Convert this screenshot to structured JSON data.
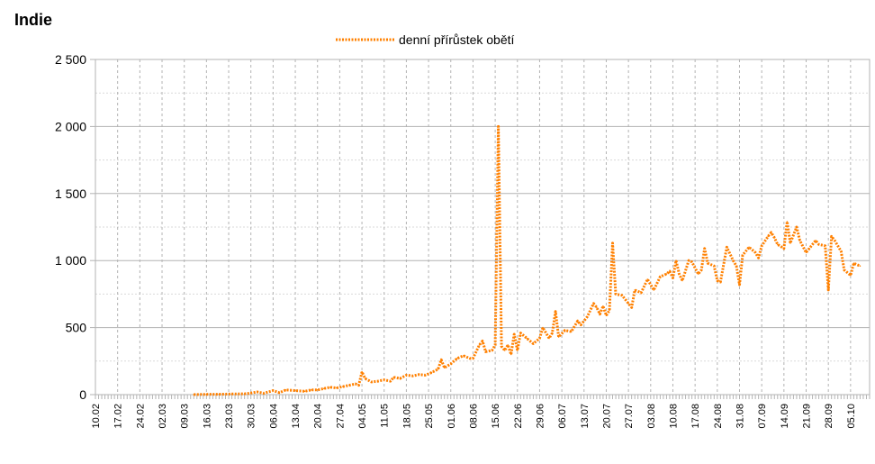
{
  "page_title": "Indie",
  "chart_data": {
    "type": "line",
    "title": "",
    "xlabel": "",
    "ylabel": "",
    "legend": {
      "position": "top-center"
    },
    "grid": true,
    "x_range": [
      "10.02",
      "11.10"
    ],
    "ylim": [
      0,
      2500
    ],
    "y_ticks": [
      "0",
      "500",
      "1 000",
      "1 500",
      "2 000",
      "2 500"
    ],
    "x_ticks": [
      "10.02",
      "17.02",
      "24.02",
      "02.03",
      "09.03",
      "16.03",
      "23.03",
      "30.03",
      "06.04",
      "13.04",
      "20.04",
      "27.04",
      "04.05",
      "11.05",
      "18.05",
      "25.05",
      "01.06",
      "08.06",
      "15.06",
      "22.06",
      "29.06",
      "06.07",
      "13.07",
      "20.07",
      "27.07",
      "03.08",
      "10.08",
      "17.08",
      "24.08",
      "31.08",
      "07.09",
      "14.09",
      "21.09",
      "28.09",
      "05.10"
    ],
    "series": [
      {
        "name": "denní přírůstek obětí",
        "color": "#ff8000",
        "style": "dotted",
        "values": [
          [
            "12.03",
            1
          ],
          [
            "16.03",
            2
          ],
          [
            "20.03",
            3
          ],
          [
            "24.03",
            5
          ],
          [
            "28.03",
            6
          ],
          [
            "30.03",
            12
          ],
          [
            "01.04",
            20
          ],
          [
            "03.04",
            10
          ],
          [
            "06.04",
            30
          ],
          [
            "08.04",
            15
          ],
          [
            "10.04",
            35
          ],
          [
            "13.04",
            30
          ],
          [
            "16.04",
            25
          ],
          [
            "18.04",
            35
          ],
          [
            "20.04",
            35
          ],
          [
            "22.04",
            45
          ],
          [
            "24.04",
            55
          ],
          [
            "26.04",
            50
          ],
          [
            "28.04",
            60
          ],
          [
            "30.04",
            70
          ],
          [
            "02.05",
            80
          ],
          [
            "03.05",
            70
          ],
          [
            "04.05",
            170
          ],
          [
            "05.05",
            120
          ],
          [
            "07.05",
            95
          ],
          [
            "09.05",
            100
          ],
          [
            "11.05",
            110
          ],
          [
            "13.05",
            100
          ],
          [
            "14.05",
            130
          ],
          [
            "16.05",
            120
          ],
          [
            "18.05",
            145
          ],
          [
            "20.05",
            140
          ],
          [
            "22.05",
            150
          ],
          [
            "24.05",
            145
          ],
          [
            "26.05",
            165
          ],
          [
            "28.05",
            190
          ],
          [
            "29.05",
            260
          ],
          [
            "30.05",
            200
          ],
          [
            "01.06",
            230
          ],
          [
            "03.06",
            270
          ],
          [
            "05.06",
            290
          ],
          [
            "07.06",
            270
          ],
          [
            "08.06",
            270
          ],
          [
            "10.06",
            370
          ],
          [
            "11.06",
            400
          ],
          [
            "12.06",
            320
          ],
          [
            "14.06",
            330
          ],
          [
            "15.06",
            370
          ],
          [
            "16.06",
            2000
          ],
          [
            "17.06",
            360
          ],
          [
            "18.06",
            330
          ],
          [
            "19.06",
            370
          ],
          [
            "20.06",
            300
          ],
          [
            "21.06",
            450
          ],
          [
            "22.06",
            330
          ],
          [
            "23.06",
            460
          ],
          [
            "25.06",
            420
          ],
          [
            "27.06",
            380
          ],
          [
            "29.06",
            420
          ],
          [
            "30.06",
            500
          ],
          [
            "02.07",
            420
          ],
          [
            "03.07",
            460
          ],
          [
            "04.07",
            620
          ],
          [
            "05.07",
            430
          ],
          [
            "07.07",
            480
          ],
          [
            "09.07",
            470
          ],
          [
            "11.07",
            550
          ],
          [
            "12.07",
            520
          ],
          [
            "14.07",
            580
          ],
          [
            "16.07",
            680
          ],
          [
            "17.07",
            650
          ],
          [
            "18.07",
            600
          ],
          [
            "19.07",
            660
          ],
          [
            "20.07",
            590
          ],
          [
            "21.07",
            630
          ],
          [
            "22.07",
            1130
          ],
          [
            "23.07",
            750
          ],
          [
            "25.07",
            740
          ],
          [
            "27.07",
            680
          ],
          [
            "28.07",
            650
          ],
          [
            "29.07",
            780
          ],
          [
            "31.07",
            760
          ],
          [
            "02.08",
            860
          ],
          [
            "04.08",
            780
          ],
          [
            "06.08",
            880
          ],
          [
            "08.08",
            900
          ],
          [
            "09.08",
            920
          ],
          [
            "10.08",
            870
          ],
          [
            "11.08",
            1000
          ],
          [
            "12.08",
            900
          ],
          [
            "13.08",
            850
          ],
          [
            "15.08",
            1000
          ],
          [
            "16.08",
            990
          ],
          [
            "18.08",
            900
          ],
          [
            "19.08",
            930
          ],
          [
            "20.08",
            1090
          ],
          [
            "21.08",
            980
          ],
          [
            "23.08",
            960
          ],
          [
            "24.08",
            850
          ],
          [
            "25.08",
            840
          ],
          [
            "27.08",
            1100
          ],
          [
            "29.08",
            1000
          ],
          [
            "30.08",
            960
          ],
          [
            "31.08",
            820
          ],
          [
            "01.09",
            1040
          ],
          [
            "03.09",
            1100
          ],
          [
            "05.09",
            1060
          ],
          [
            "06.09",
            1020
          ],
          [
            "07.09",
            1110
          ],
          [
            "09.09",
            1180
          ],
          [
            "10.09",
            1210
          ],
          [
            "11.09",
            1170
          ],
          [
            "12.09",
            1120
          ],
          [
            "14.09",
            1090
          ],
          [
            "15.09",
            1290
          ],
          [
            "16.09",
            1130
          ],
          [
            "18.09",
            1250
          ],
          [
            "19.09",
            1150
          ],
          [
            "21.09",
            1060
          ],
          [
            "22.09",
            1090
          ],
          [
            "24.09",
            1150
          ],
          [
            "25.09",
            1120
          ],
          [
            "27.09",
            1110
          ],
          [
            "28.09",
            780
          ],
          [
            "29.09",
            1180
          ],
          [
            "30.09",
            1150
          ],
          [
            "02.10",
            1070
          ],
          [
            "03.10",
            930
          ],
          [
            "05.10",
            890
          ],
          [
            "06.10",
            980
          ],
          [
            "08.10",
            960
          ]
        ]
      }
    ]
  }
}
